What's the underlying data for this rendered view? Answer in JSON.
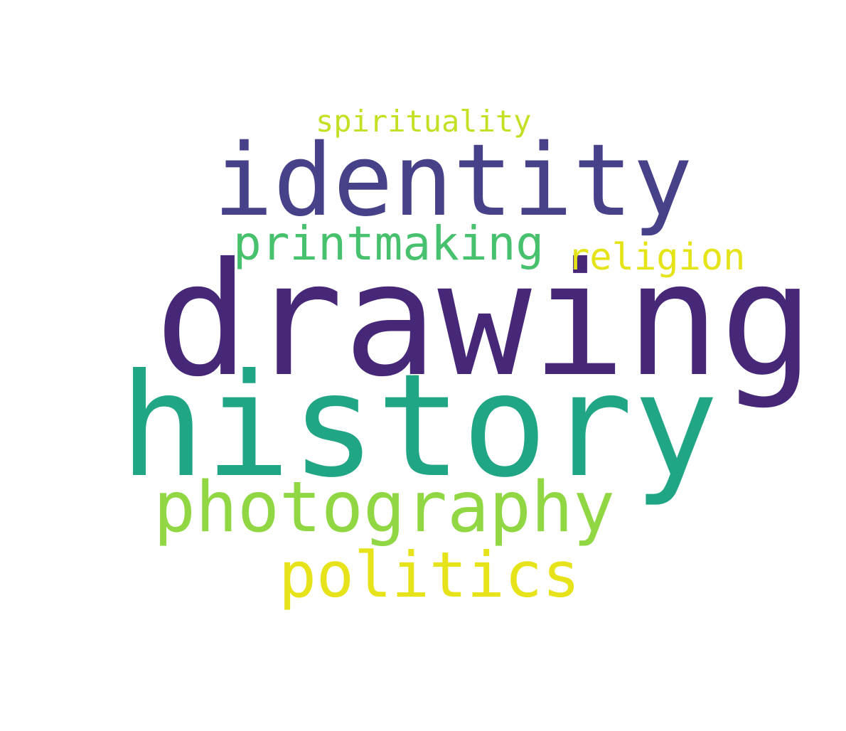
{
  "words": [
    {
      "text": "spirituality",
      "color": "#c5df23"
    },
    {
      "text": "identity",
      "color": "#47418a"
    },
    {
      "text": "printmaking",
      "color": "#48c16e"
    },
    {
      "text": "religion",
      "color": "#e5e419"
    },
    {
      "text": "drawing",
      "color": "#472878"
    },
    {
      "text": "history",
      "color": "#21a685"
    },
    {
      "text": "photography",
      "color": "#90d743"
    },
    {
      "text": "politics",
      "color": "#e7e31a"
    }
  ],
  "background_color": "#ffffff"
}
